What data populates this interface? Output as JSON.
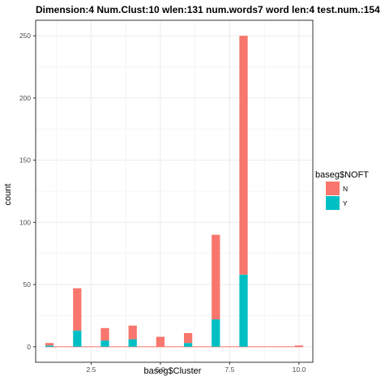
{
  "chart_data": {
    "type": "bar",
    "stacked": true,
    "title": "Dimension:4  Num.Clust:10  wlen:131  num.words7  word len:4  test.num.:154",
    "xlabel": "baseg$Cluster",
    "ylabel": "count",
    "xlim": [
      0.5,
      10.5
    ],
    "ylim": [
      -12.5,
      262.5
    ],
    "x_ticks": [
      2.5,
      5.0,
      7.5,
      10.0
    ],
    "x_tick_labels": [
      "2.5",
      "5.0",
      "7.5",
      "10.0"
    ],
    "y_ticks": [
      0,
      50,
      100,
      150,
      200,
      250
    ],
    "y_tick_labels": [
      "0",
      "50",
      "100",
      "150",
      "200",
      "250"
    ],
    "grid": true,
    "legend": {
      "title": "baseg$NOFT",
      "position": "right",
      "entries": [
        {
          "label": "N",
          "color": "#F8766D"
        },
        {
          "label": "Y",
          "color": "#00BFC4"
        }
      ]
    },
    "bars": [
      {
        "x": 1,
        "N": 2,
        "Y": 1
      },
      {
        "x": 2,
        "N": 34,
        "Y": 13
      },
      {
        "x": 3,
        "N": 10,
        "Y": 5
      },
      {
        "x": 4,
        "N": 11,
        "Y": 6
      },
      {
        "x": 5,
        "N": 8,
        "Y": 0
      },
      {
        "x": 6,
        "N": 8,
        "Y": 3
      },
      {
        "x": 7,
        "N": 68,
        "Y": 22
      },
      {
        "x": 8,
        "N": 192,
        "Y": 58
      },
      {
        "x": 10,
        "N": 1,
        "Y": 0
      }
    ],
    "colors": {
      "N": "#F8766D",
      "Y": "#00BFC4",
      "grid": "#EBEBEB",
      "panel_border": "#333333"
    }
  }
}
